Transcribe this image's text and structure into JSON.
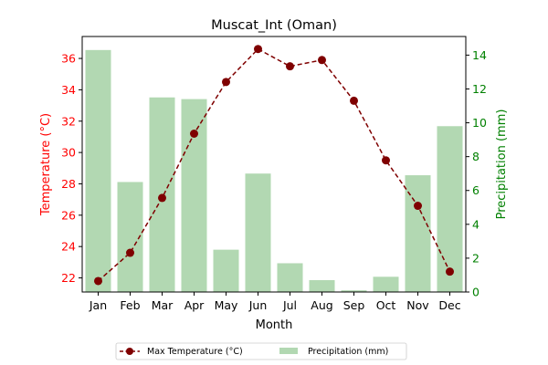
{
  "chart_data": {
    "type": "bar+line",
    "title": "Muscat_Int (Oman)",
    "xlabel": "Month",
    "ylabel_left": "Temperature (°C)",
    "ylabel_right": "Precipitation (mm)",
    "categories": [
      "Jan",
      "Feb",
      "Mar",
      "Apr",
      "May",
      "Jun",
      "Jul",
      "Aug",
      "Sep",
      "Oct",
      "Nov",
      "Dec"
    ],
    "left_axis": {
      "ylim": [
        21.1,
        37.4
      ],
      "ticks": [
        22,
        24,
        26,
        28,
        30,
        32,
        34,
        36
      ]
    },
    "right_axis": {
      "ylim": [
        0,
        15.1
      ],
      "ticks": [
        0,
        2,
        4,
        6,
        8,
        10,
        12,
        14
      ]
    },
    "series": [
      {
        "name": "Precipitation (mm)",
        "type": "bar",
        "axis": "right",
        "color": "#b2d8b2",
        "values": [
          14.3,
          6.5,
          11.5,
          11.4,
          2.5,
          7.0,
          1.7,
          0.7,
          0.1,
          0.9,
          6.9,
          9.8
        ]
      },
      {
        "name": "Max Temperature (°C)",
        "type": "line",
        "axis": "left",
        "color": "#7f0000",
        "values": [
          21.8,
          23.6,
          27.1,
          31.2,
          34.5,
          36.6,
          35.5,
          35.9,
          33.3,
          29.5,
          26.6,
          22.4
        ]
      }
    ],
    "legend": {
      "placement": "bottom-center",
      "entries": [
        "Max Temperature (°C)",
        "Precipitation (mm)"
      ]
    },
    "left_axis_color": "#ff0000",
    "right_axis_color": "#008000",
    "grid": false
  }
}
